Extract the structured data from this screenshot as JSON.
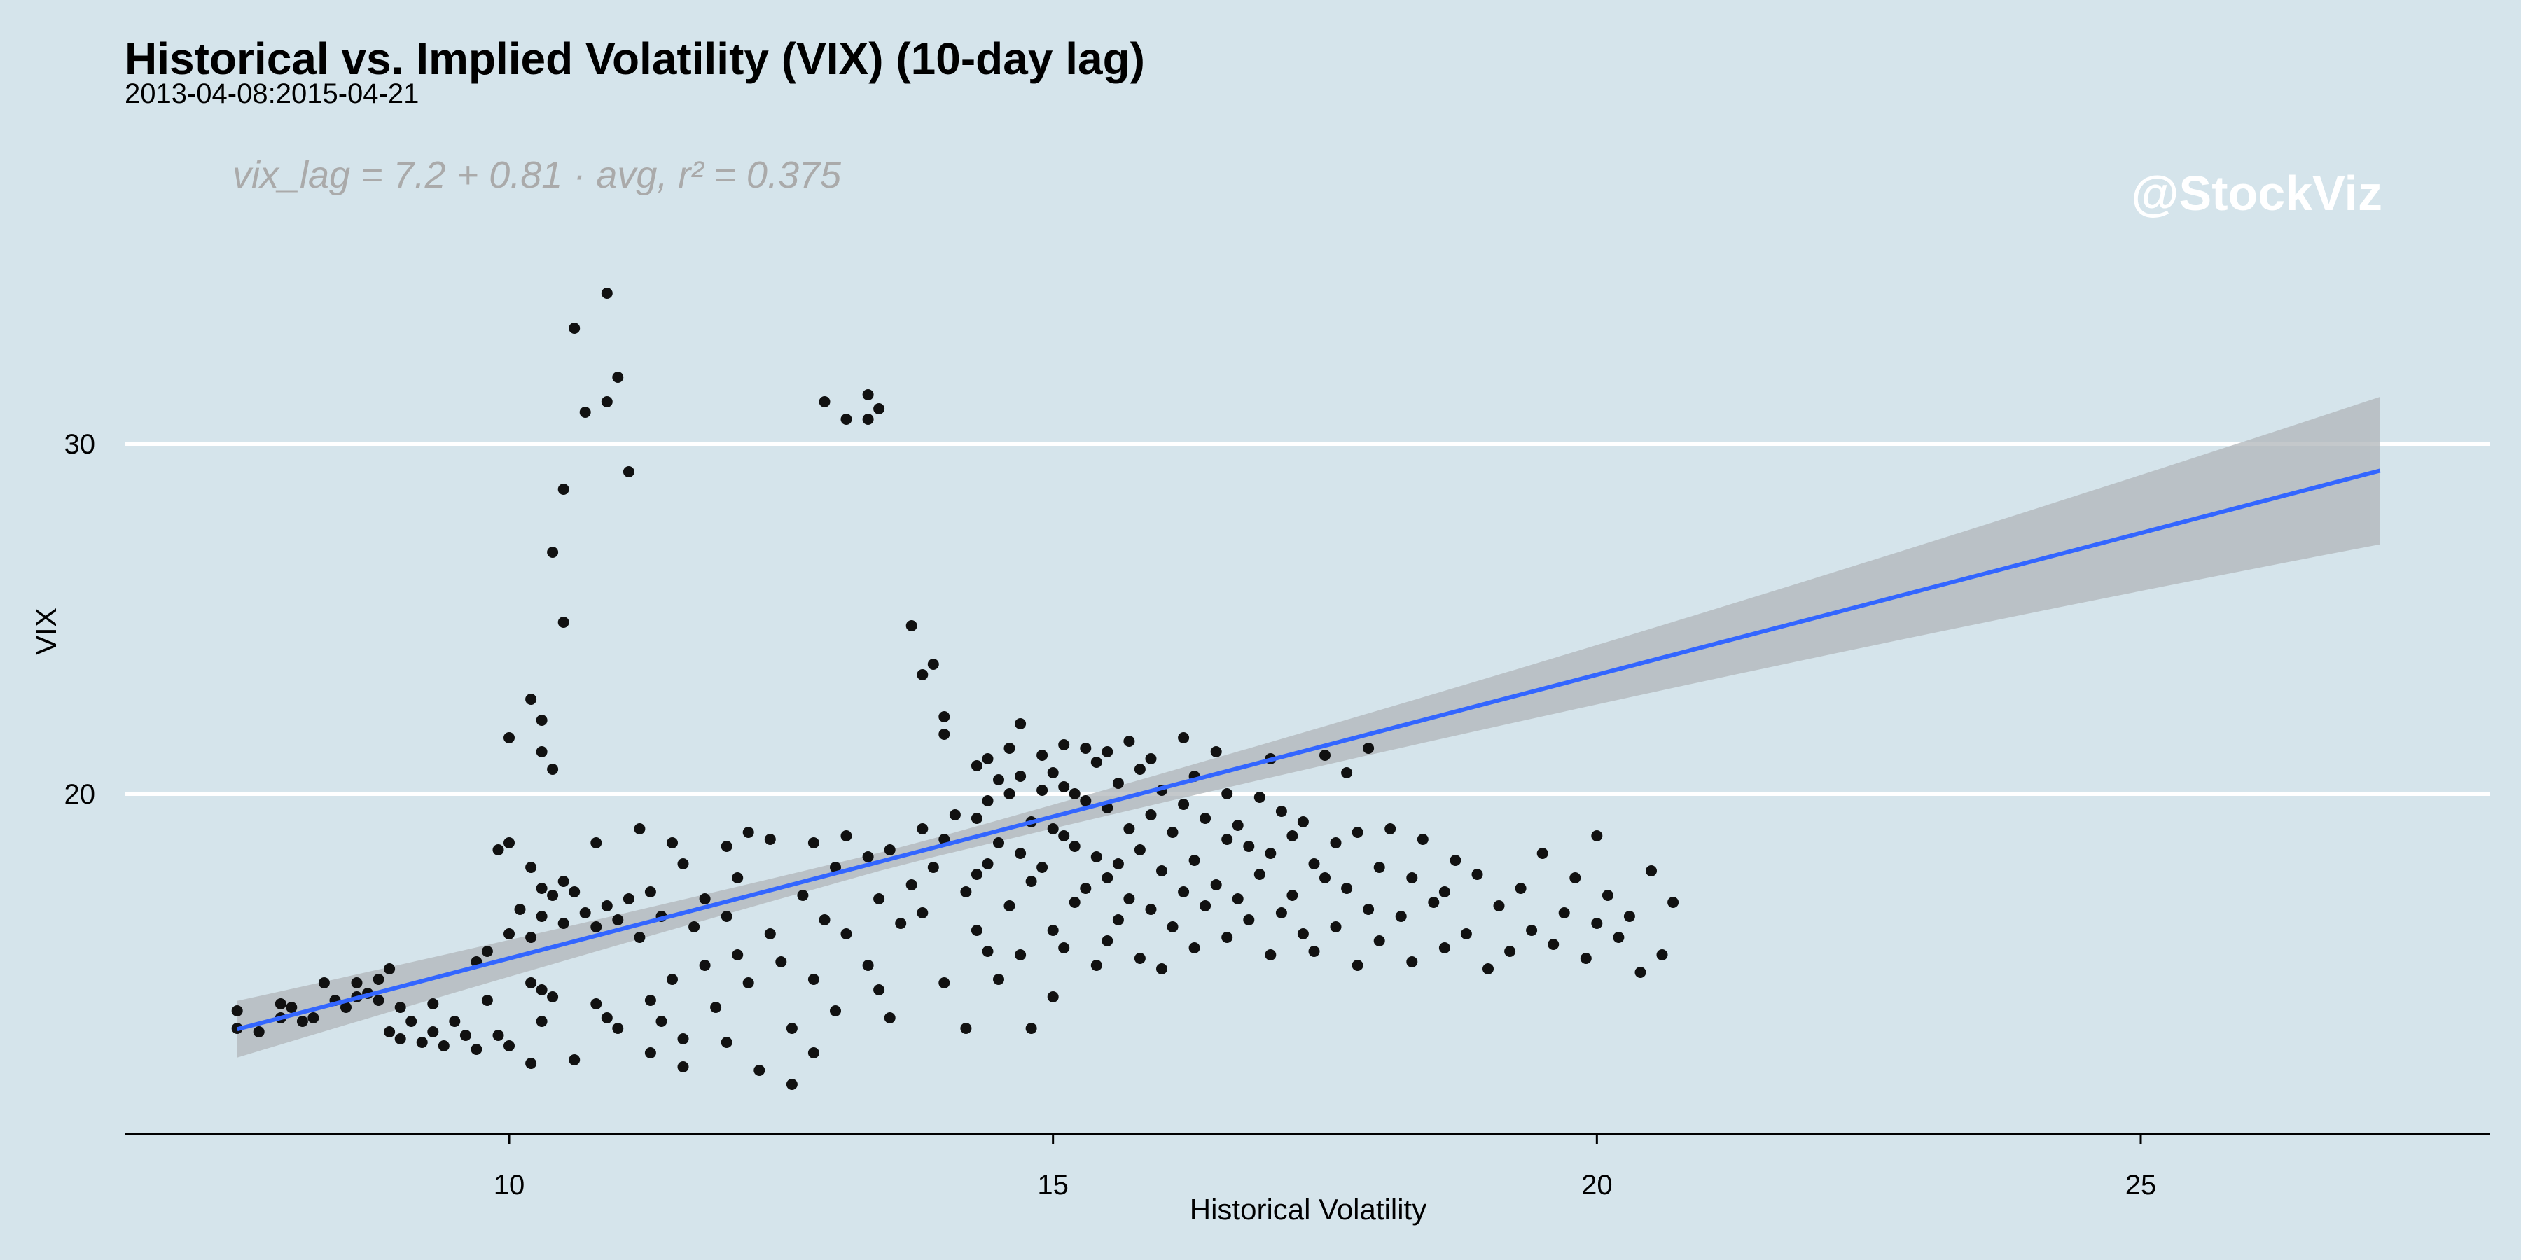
{
  "chart_data": {
    "type": "scatter",
    "title": "Historical vs. Implied Volatility (VIX) (10-day lag)",
    "subtitle": "2013-04-08:2015-04-21",
    "xlabel": "Historical Volatility",
    "ylabel": "VIX",
    "annotation": "vix_lag = 7.2 + 0.81 · avg,  r² = 0.375",
    "watermark": "@StockViz",
    "xlim": [
      6.5,
      28.2
    ],
    "ylim": [
      10.3,
      37.8
    ],
    "x_ticks": [
      10,
      15,
      20,
      25
    ],
    "y_ticks": [
      20,
      30
    ],
    "x_tick_labels": [
      "10",
      "15",
      "20",
      "25"
    ],
    "y_tick_labels": [
      "20",
      "30"
    ],
    "grid": "horizontal major lines only",
    "regression": {
      "intercept": 7.2,
      "slope": 0.81,
      "r2": 0.375,
      "x_range": [
        7.5,
        27.2
      ]
    },
    "colors": {
      "background": "#d5e4eb",
      "points": "#111111",
      "fit_line": "#3366ff",
      "confidence_band": "#b0b6ba",
      "grid": "#ffffff"
    },
    "points": [
      [
        7.5,
        13.3
      ],
      [
        7.5,
        13.8
      ],
      [
        7.7,
        13.2
      ],
      [
        7.9,
        14.0
      ],
      [
        7.9,
        13.6
      ],
      [
        8.0,
        13.9
      ],
      [
        8.1,
        13.5
      ],
      [
        8.2,
        13.6
      ],
      [
        8.3,
        14.6
      ],
      [
        8.4,
        14.1
      ],
      [
        8.5,
        13.9
      ],
      [
        8.6,
        14.6
      ],
      [
        8.6,
        14.2
      ],
      [
        8.7,
        14.3
      ],
      [
        8.8,
        14.7
      ],
      [
        8.8,
        14.1
      ],
      [
        8.9,
        15.0
      ],
      [
        8.9,
        13.2
      ],
      [
        9.0,
        13.9
      ],
      [
        9.0,
        13.0
      ],
      [
        9.1,
        13.5
      ],
      [
        9.2,
        12.9
      ],
      [
        9.3,
        13.2
      ],
      [
        9.3,
        14.0
      ],
      [
        9.4,
        12.8
      ],
      [
        9.5,
        13.5
      ],
      [
        9.6,
        13.1
      ],
      [
        9.7,
        15.2
      ],
      [
        9.7,
        12.7
      ],
      [
        9.8,
        15.5
      ],
      [
        9.8,
        14.1
      ],
      [
        9.9,
        13.1
      ],
      [
        9.9,
        18.4
      ],
      [
        10.0,
        18.6
      ],
      [
        10.0,
        21.6
      ],
      [
        10.0,
        16.0
      ],
      [
        10.0,
        12.8
      ],
      [
        10.1,
        16.7
      ],
      [
        10.2,
        22.7
      ],
      [
        10.2,
        17.9
      ],
      [
        10.2,
        15.9
      ],
      [
        10.2,
        14.6
      ],
      [
        10.2,
        12.3
      ],
      [
        10.3,
        22.1
      ],
      [
        10.3,
        21.2
      ],
      [
        10.3,
        17.3
      ],
      [
        10.3,
        16.5
      ],
      [
        10.3,
        14.4
      ],
      [
        10.3,
        13.5
      ],
      [
        10.4,
        26.9
      ],
      [
        10.4,
        20.7
      ],
      [
        10.4,
        17.1
      ],
      [
        10.4,
        14.2
      ],
      [
        10.5,
        28.7
      ],
      [
        10.5,
        24.9
      ],
      [
        10.5,
        17.5
      ],
      [
        10.5,
        16.3
      ],
      [
        10.6,
        33.3
      ],
      [
        10.6,
        17.2
      ],
      [
        10.6,
        12.4
      ],
      [
        10.7,
        30.9
      ],
      [
        10.7,
        16.6
      ],
      [
        10.8,
        18.6
      ],
      [
        10.8,
        16.2
      ],
      [
        10.8,
        14.0
      ],
      [
        10.9,
        34.3
      ],
      [
        10.9,
        31.2
      ],
      [
        10.9,
        16.8
      ],
      [
        10.9,
        13.6
      ],
      [
        11.0,
        31.9
      ],
      [
        11.0,
        16.4
      ],
      [
        11.0,
        13.3
      ],
      [
        11.1,
        29.2
      ],
      [
        11.1,
        17.0
      ],
      [
        11.2,
        19.0
      ],
      [
        11.2,
        15.9
      ],
      [
        11.3,
        17.2
      ],
      [
        11.3,
        14.1
      ],
      [
        11.3,
        12.6
      ],
      [
        11.4,
        16.5
      ],
      [
        11.4,
        13.5
      ],
      [
        11.5,
        18.6
      ],
      [
        11.5,
        14.7
      ],
      [
        11.6,
        18.0
      ],
      [
        11.6,
        13.0
      ],
      [
        11.6,
        12.2
      ],
      [
        11.7,
        16.2
      ],
      [
        11.8,
        17.0
      ],
      [
        11.8,
        15.1
      ],
      [
        11.9,
        13.9
      ],
      [
        12.0,
        18.5
      ],
      [
        12.0,
        16.5
      ],
      [
        12.0,
        12.9
      ],
      [
        12.1,
        17.6
      ],
      [
        12.1,
        15.4
      ],
      [
        12.2,
        18.9
      ],
      [
        12.2,
        14.6
      ],
      [
        12.3,
        12.1
      ],
      [
        12.4,
        18.7
      ],
      [
        12.4,
        16.0
      ],
      [
        12.5,
        15.2
      ],
      [
        12.6,
        13.3
      ],
      [
        12.6,
        11.7
      ],
      [
        12.7,
        17.1
      ],
      [
        12.8,
        18.6
      ],
      [
        12.8,
        14.7
      ],
      [
        12.8,
        12.6
      ],
      [
        12.9,
        31.2
      ],
      [
        12.9,
        16.4
      ],
      [
        13.0,
        17.9
      ],
      [
        13.0,
        13.8
      ],
      [
        13.1,
        30.7
      ],
      [
        13.1,
        18.8
      ],
      [
        13.1,
        16.0
      ],
      [
        13.3,
        31.4
      ],
      [
        13.3,
        30.7
      ],
      [
        13.3,
        18.2
      ],
      [
        13.3,
        15.1
      ],
      [
        13.4,
        31.0
      ],
      [
        13.4,
        17.0
      ],
      [
        13.4,
        14.4
      ],
      [
        13.5,
        18.4
      ],
      [
        13.5,
        13.6
      ],
      [
        13.6,
        16.3
      ],
      [
        13.7,
        24.8
      ],
      [
        13.7,
        17.4
      ],
      [
        13.8,
        23.4
      ],
      [
        13.8,
        19.0
      ],
      [
        13.8,
        16.6
      ],
      [
        13.9,
        23.7
      ],
      [
        13.9,
        17.9
      ],
      [
        14.0,
        22.2
      ],
      [
        14.0,
        21.7
      ],
      [
        14.0,
        18.7
      ],
      [
        14.0,
        14.6
      ],
      [
        14.1,
        19.4
      ],
      [
        14.2,
        17.2
      ],
      [
        14.2,
        13.3
      ],
      [
        14.3,
        20.8
      ],
      [
        14.3,
        19.3
      ],
      [
        14.3,
        17.7
      ],
      [
        14.3,
        16.1
      ],
      [
        14.4,
        21.0
      ],
      [
        14.4,
        19.8
      ],
      [
        14.4,
        18.0
      ],
      [
        14.4,
        15.5
      ],
      [
        14.5,
        20.4
      ],
      [
        14.5,
        18.6
      ],
      [
        14.5,
        14.7
      ],
      [
        14.6,
        21.3
      ],
      [
        14.6,
        20.0
      ],
      [
        14.6,
        16.8
      ],
      [
        14.7,
        22.0
      ],
      [
        14.7,
        20.5
      ],
      [
        14.7,
        18.3
      ],
      [
        14.7,
        15.4
      ],
      [
        14.8,
        19.2
      ],
      [
        14.8,
        17.5
      ],
      [
        14.8,
        13.3
      ],
      [
        14.9,
        21.1
      ],
      [
        14.9,
        20.1
      ],
      [
        14.9,
        17.9
      ],
      [
        15.0,
        20.6
      ],
      [
        15.0,
        19.0
      ],
      [
        15.0,
        16.1
      ],
      [
        15.0,
        14.2
      ],
      [
        15.1,
        21.4
      ],
      [
        15.1,
        20.2
      ],
      [
        15.1,
        18.8
      ],
      [
        15.1,
        15.6
      ],
      [
        15.2,
        20.0
      ],
      [
        15.2,
        18.5
      ],
      [
        15.2,
        16.9
      ],
      [
        15.3,
        21.3
      ],
      [
        15.3,
        19.8
      ],
      [
        15.3,
        17.3
      ],
      [
        15.4,
        20.9
      ],
      [
        15.4,
        18.2
      ],
      [
        15.4,
        15.1
      ],
      [
        15.5,
        21.2
      ],
      [
        15.5,
        19.6
      ],
      [
        15.5,
        17.6
      ],
      [
        15.5,
        15.8
      ],
      [
        15.6,
        20.3
      ],
      [
        15.6,
        18.0
      ],
      [
        15.6,
        16.4
      ],
      [
        15.7,
        21.5
      ],
      [
        15.7,
        19.0
      ],
      [
        15.7,
        17.0
      ],
      [
        15.8,
        20.7
      ],
      [
        15.8,
        18.4
      ],
      [
        15.8,
        15.3
      ],
      [
        15.9,
        21.0
      ],
      [
        15.9,
        19.4
      ],
      [
        15.9,
        16.7
      ],
      [
        16.0,
        20.1
      ],
      [
        16.0,
        17.8
      ],
      [
        16.0,
        15.0
      ],
      [
        16.1,
        18.9
      ],
      [
        16.1,
        16.2
      ],
      [
        16.2,
        21.6
      ],
      [
        16.2,
        19.7
      ],
      [
        16.2,
        17.2
      ],
      [
        16.3,
        20.5
      ],
      [
        16.3,
        18.1
      ],
      [
        16.3,
        15.6
      ],
      [
        16.4,
        19.3
      ],
      [
        16.4,
        16.8
      ],
      [
        16.5,
        21.2
      ],
      [
        16.5,
        17.4
      ],
      [
        16.6,
        20.0
      ],
      [
        16.6,
        18.7
      ],
      [
        16.6,
        15.9
      ],
      [
        16.7,
        19.1
      ],
      [
        16.7,
        17.0
      ],
      [
        16.8,
        18.5
      ],
      [
        16.8,
        16.4
      ],
      [
        16.9,
        19.9
      ],
      [
        16.9,
        17.7
      ],
      [
        17.0,
        21.0
      ],
      [
        17.0,
        18.3
      ],
      [
        17.0,
        15.4
      ],
      [
        17.1,
        19.5
      ],
      [
        17.1,
        16.6
      ],
      [
        17.2,
        18.8
      ],
      [
        17.2,
        17.1
      ],
      [
        17.3,
        19.2
      ],
      [
        17.3,
        16.0
      ],
      [
        17.4,
        18.0
      ],
      [
        17.4,
        15.5
      ],
      [
        17.5,
        21.1
      ],
      [
        17.5,
        17.6
      ],
      [
        17.6,
        18.6
      ],
      [
        17.6,
        16.2
      ],
      [
        17.7,
        20.6
      ],
      [
        17.7,
        17.3
      ],
      [
        17.8,
        18.9
      ],
      [
        17.8,
        15.1
      ],
      [
        17.9,
        21.3
      ],
      [
        17.9,
        16.7
      ],
      [
        18.0,
        17.9
      ],
      [
        18.0,
        15.8
      ],
      [
        18.1,
        19.0
      ],
      [
        18.2,
        16.5
      ],
      [
        18.3,
        17.6
      ],
      [
        18.3,
        15.2
      ],
      [
        18.4,
        18.7
      ],
      [
        18.5,
        16.9
      ],
      [
        18.6,
        17.2
      ],
      [
        18.6,
        15.6
      ],
      [
        18.7,
        18.1
      ],
      [
        18.8,
        16.0
      ],
      [
        18.9,
        17.7
      ],
      [
        19.0,
        15.0
      ],
      [
        19.1,
        16.8
      ],
      [
        19.2,
        15.5
      ],
      [
        19.3,
        17.3
      ],
      [
        19.4,
        16.1
      ],
      [
        19.5,
        18.3
      ],
      [
        19.6,
        15.7
      ],
      [
        19.7,
        16.6
      ],
      [
        19.8,
        17.6
      ],
      [
        19.9,
        15.3
      ],
      [
        20.0,
        16.3
      ],
      [
        20.0,
        18.8
      ],
      [
        20.1,
        17.1
      ],
      [
        20.2,
        15.9
      ],
      [
        20.3,
        16.5
      ],
      [
        20.4,
        14.9
      ],
      [
        20.5,
        17.8
      ],
      [
        20.6,
        15.4
      ],
      [
        20.7,
        16.9
      ]
    ]
  }
}
